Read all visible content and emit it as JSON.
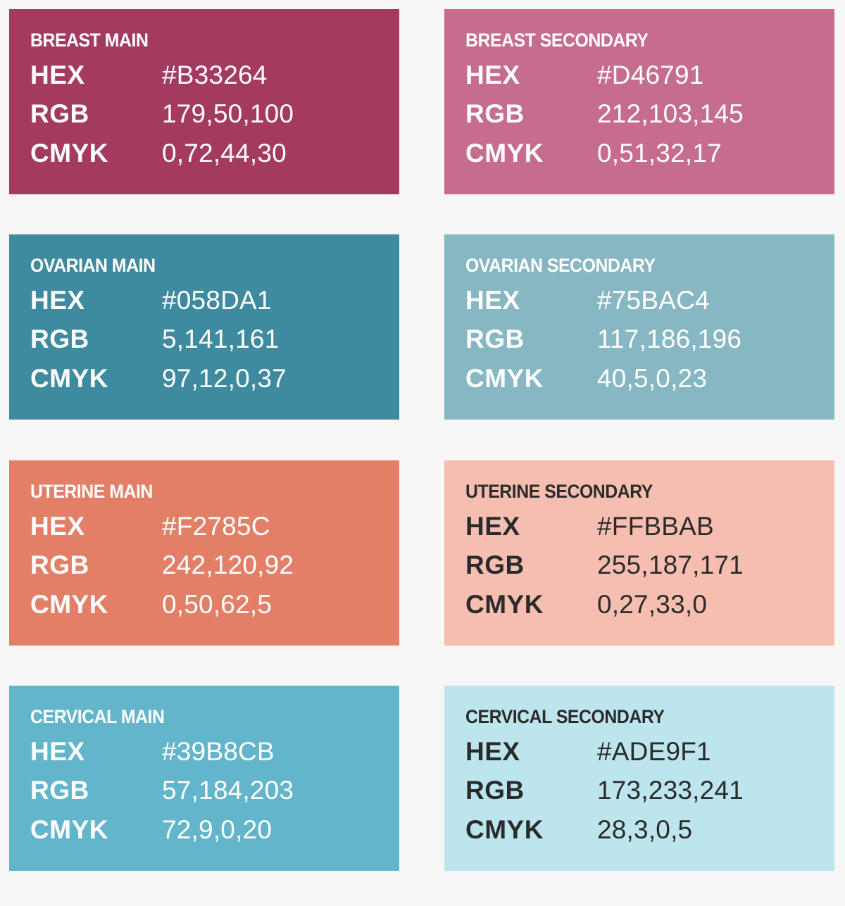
{
  "swatches": [
    {
      "title": "BREAST MAIN",
      "background": "#A53A61",
      "text_color": "#FFFFFF",
      "rows": [
        {
          "label": "HEX",
          "value": "#B33264"
        },
        {
          "label": "RGB",
          "value": "179,50,100"
        },
        {
          "label": "CMYK",
          "value": "0,72,44,30"
        }
      ]
    },
    {
      "title": "BREAST SECONDARY",
      "background": "#C66C8E",
      "text_color": "#FFFFFF",
      "rows": [
        {
          "label": "HEX",
          "value": "#D46791"
        },
        {
          "label": "RGB",
          "value": "212,103,145"
        },
        {
          "label": "CMYK",
          "value": "0,51,32,17"
        }
      ]
    },
    {
      "title": "OVARIAN MAIN",
      "background": "#3E8A9E",
      "text_color": "#FFFFFF",
      "rows": [
        {
          "label": "HEX",
          "value": "#058DA1"
        },
        {
          "label": "RGB",
          "value": "5,141,161"
        },
        {
          "label": "CMYK",
          "value": "97,12,0,37"
        }
      ]
    },
    {
      "title": "OVARIAN SECONDARY",
      "background": "#86B7C2",
      "text_color": "#FFFFFF",
      "rows": [
        {
          "label": "HEX",
          "value": "#75BAC4"
        },
        {
          "label": "RGB",
          "value": "117,186,196"
        },
        {
          "label": "CMYK",
          "value": "40,5,0,23"
        }
      ]
    },
    {
      "title": "UTERINE MAIN",
      "background": "#E37F66",
      "text_color": "#FFFFFF",
      "rows": [
        {
          "label": "HEX",
          "value": "#F2785C"
        },
        {
          "label": "RGB",
          "value": "242,120,92"
        },
        {
          "label": "CMYK",
          "value": "0,50,62,5"
        }
      ]
    },
    {
      "title": "UTERINE SECONDARY",
      "background": "#F5BEB0",
      "text_color": "#2B2B2B",
      "rows": [
        {
          "label": "HEX",
          "value": "#FFBBAB"
        },
        {
          "label": "RGB",
          "value": "255,187,171"
        },
        {
          "label": "CMYK",
          "value": "0,27,33,0"
        }
      ]
    },
    {
      "title": "CERVICAL MAIN",
      "background": "#62B5CA",
      "text_color": "#FFFFFF",
      "rows": [
        {
          "label": "HEX",
          "value": "#39B8CB"
        },
        {
          "label": "RGB",
          "value": "57,184,203"
        },
        {
          "label": "CMYK",
          "value": "72,9,0,20"
        }
      ]
    },
    {
      "title": "CERVICAL SECONDARY",
      "background": "#BCE5EE",
      "text_color": "#2B2B2B",
      "rows": [
        {
          "label": "HEX",
          "value": "#ADE9F1"
        },
        {
          "label": "RGB",
          "value": "173,233,241"
        },
        {
          "label": "CMYK",
          "value": "28,3,0,5"
        }
      ]
    }
  ]
}
